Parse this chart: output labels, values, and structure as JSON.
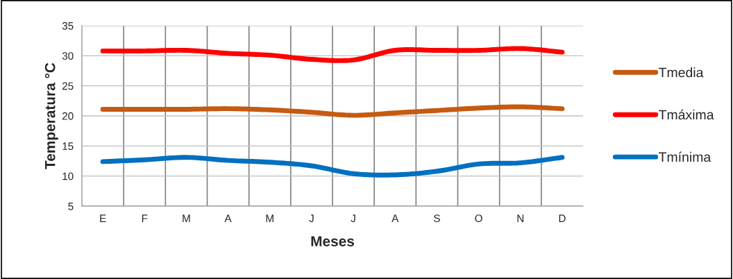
{
  "chart_data": {
    "type": "line",
    "xlabel": "Meses",
    "ylabel": "Temperatura °C",
    "categories": [
      "E",
      "F",
      "M",
      "A",
      "M",
      "J",
      "J",
      "A",
      "S",
      "O",
      "N",
      "D"
    ],
    "series": [
      {
        "name": "Tmedia",
        "color": "#c55a11",
        "values": [
          21.1,
          21.1,
          21.1,
          21.2,
          21.0,
          20.6,
          20.1,
          20.5,
          20.9,
          21.3,
          21.5,
          21.2
        ]
      },
      {
        "name": "Tmáxima",
        "color": "#ff0000",
        "values": [
          30.8,
          30.8,
          30.9,
          30.4,
          30.1,
          29.4,
          29.3,
          30.9,
          30.9,
          30.9,
          31.2,
          30.6
        ]
      },
      {
        "name": "Tmínima",
        "color": "#0070c0",
        "values": [
          12.4,
          12.7,
          13.1,
          12.6,
          12.3,
          11.7,
          10.4,
          10.2,
          10.8,
          12.0,
          12.2,
          13.1
        ]
      }
    ],
    "ylim": [
      5,
      35
    ],
    "yticks": [
      5,
      10,
      15,
      20,
      25,
      30,
      35
    ],
    "grid": true,
    "legend": "right",
    "marker": "none",
    "line_style": "solid"
  }
}
